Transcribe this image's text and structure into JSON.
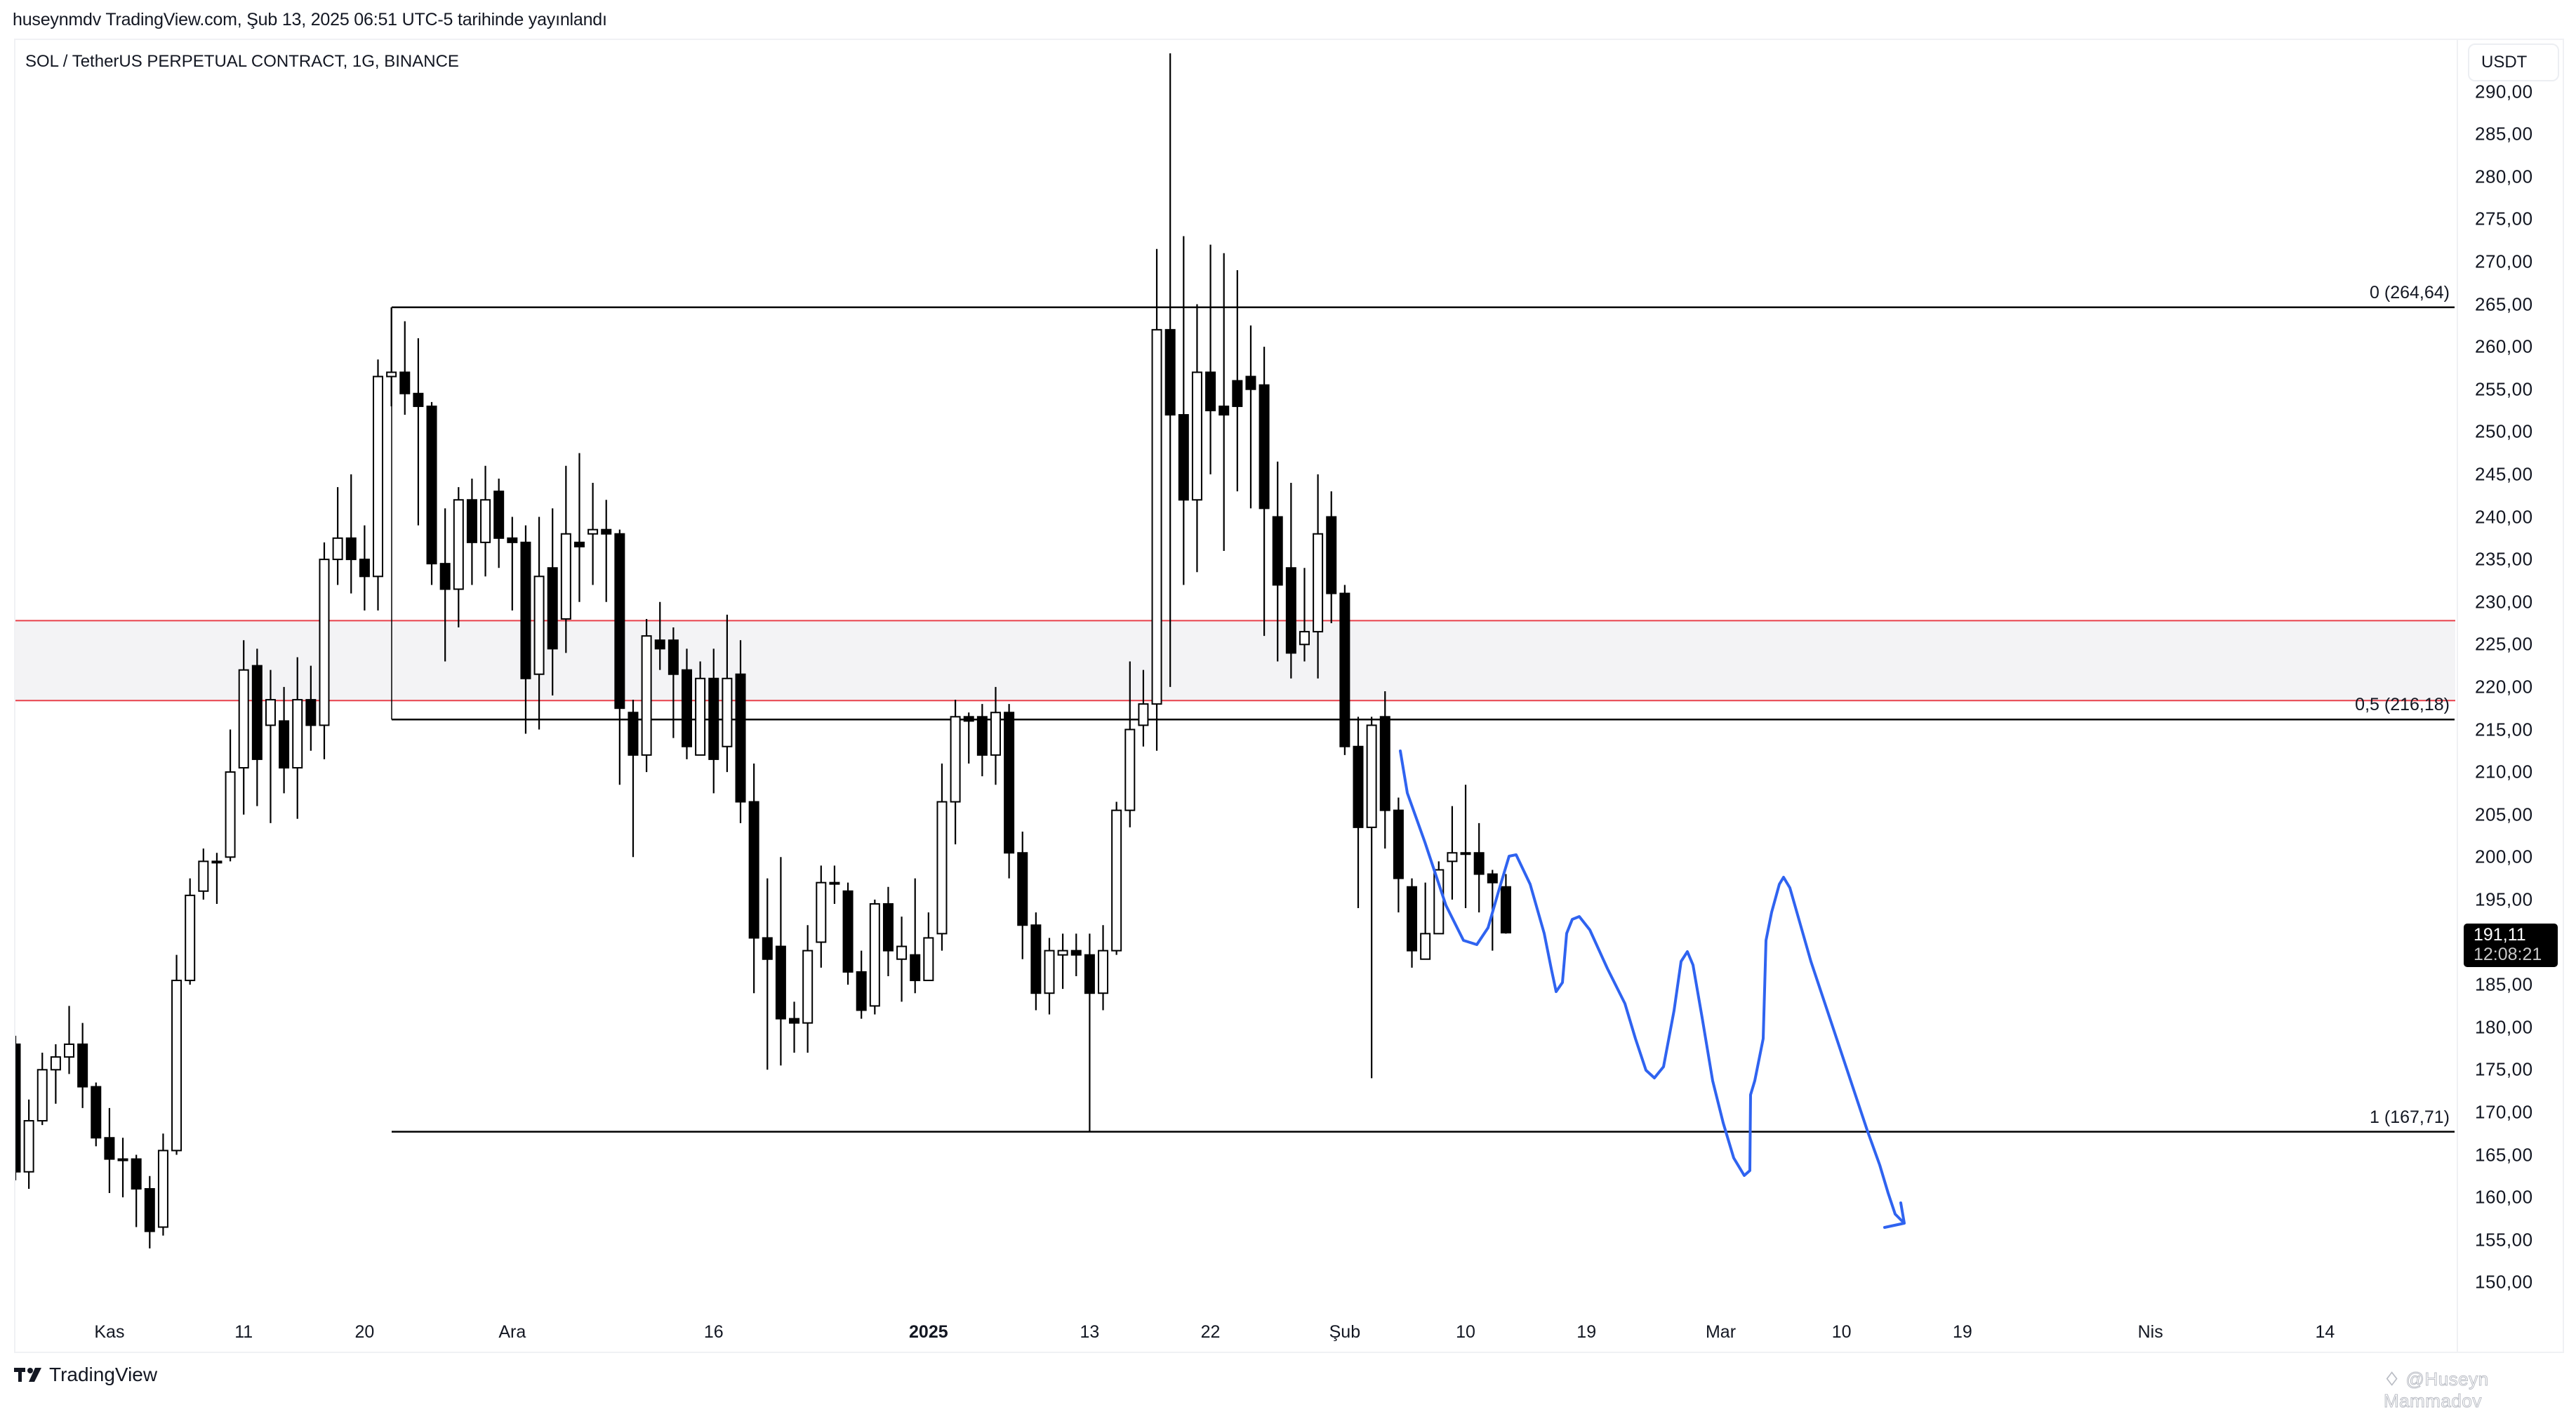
{
  "header": {
    "published_text": "huseynmdv TradingView.com, Şub 13, 2025 06:51 UTC-5 tarihinde yayınlandı"
  },
  "chart": {
    "symbol_title": "SOL / TetherUS PERPETUAL CONTRACT, 1G, BINANCE",
    "currency_unit": "USDT",
    "last_price": "191,11",
    "countdown": "12:08:21",
    "fib": {
      "level_0_label": "0 (264,64)",
      "level_05_label": "0,5 (216,18)",
      "level_1_label": "1 (167,71)"
    },
    "y_axis_labels": [
      "290,00",
      "285,00",
      "280,00",
      "275,00",
      "270,00",
      "265,00",
      "260,00",
      "255,00",
      "250,00",
      "245,00",
      "240,00",
      "235,00",
      "230,00",
      "225,00",
      "220,00",
      "215,00",
      "210,00",
      "205,00",
      "200,00",
      "195,00",
      "185,00",
      "180,00",
      "175,00",
      "170,00",
      "165,00",
      "160,00",
      "155,00",
      "150,00"
    ],
    "x_axis_labels": [
      "Kas",
      "11",
      "20",
      "Ara",
      "16",
      "2025",
      "13",
      "22",
      "Şub",
      "10",
      "19",
      "Mar",
      "10",
      "19",
      "Nis",
      "14"
    ]
  },
  "footer": {
    "logo_text": "TradingView",
    "watermark": "@Huseyn Mammadov"
  },
  "colors": {
    "bull_body": "#ffffff",
    "bear_body": "#000000",
    "wick": "#000000",
    "zone_line": "#e8404a",
    "zone_fill": "#f3f3f5",
    "projection": "#2f63f0",
    "fib_line": "#000000"
  },
  "chart_data": {
    "type": "candlestick",
    "title": "SOL / TetherUS PERPETUAL CONTRACT, 1G, BINANCE",
    "xlabel": "",
    "ylabel": "USDT",
    "ylim": [
      146,
      298
    ],
    "yticks": [
      150,
      155,
      160,
      165,
      170,
      175,
      180,
      185,
      190,
      195,
      200,
      205,
      210,
      215,
      220,
      225,
      230,
      235,
      240,
      245,
      250,
      255,
      260,
      265,
      270,
      275,
      280,
      285,
      290
    ],
    "x_tick_labels": [
      "Kas",
      "11",
      "20",
      "Ara",
      "16",
      "2025",
      "13",
      "22",
      "Şub",
      "10",
      "19",
      "Mar",
      "10",
      "19",
      "Nis",
      "14"
    ],
    "grid": false,
    "start_date": "2024-10-25",
    "interval": "1D",
    "ohlc": [
      [
        178,
        179,
        162,
        163
      ],
      [
        163,
        171.5,
        161,
        169
      ],
      [
        169,
        177,
        168.5,
        175
      ],
      [
        175,
        178,
        171,
        176.5
      ],
      [
        176.5,
        182.5,
        174.5,
        178
      ],
      [
        178,
        180.5,
        170.5,
        173
      ],
      [
        173,
        173.5,
        166,
        167
      ],
      [
        167,
        170.5,
        160.5,
        164.5
      ],
      [
        164.5,
        167,
        160,
        164.5
      ],
      [
        164.5,
        165,
        156.5,
        161
      ],
      [
        161,
        162.5,
        154,
        156
      ],
      [
        156.5,
        167.5,
        155.5,
        165.5
      ],
      [
        165.5,
        188.5,
        165,
        185.5
      ],
      [
        185.5,
        197.5,
        185,
        195.5
      ],
      [
        196,
        201,
        195,
        199.5
      ],
      [
        199.5,
        200.5,
        194.5,
        199.5
      ],
      [
        200,
        215,
        199.5,
        210
      ],
      [
        210.5,
        225.5,
        205,
        222
      ],
      [
        222.5,
        224.5,
        206,
        211.5
      ],
      [
        215.5,
        222,
        204,
        218.5
      ],
      [
        216,
        220,
        207.5,
        210.5
      ],
      [
        210.5,
        223.5,
        204.5,
        218.5
      ],
      [
        218.5,
        222.5,
        212.5,
        215.5
      ],
      [
        215.5,
        237,
        211.5,
        235
      ],
      [
        235,
        243.5,
        232,
        237.5
      ],
      [
        237.5,
        245,
        231,
        235
      ],
      [
        235,
        239,
        229,
        233
      ],
      [
        233,
        258.5,
        229,
        256.5
      ],
      [
        256.5,
        264.64,
        253,
        257
      ],
      [
        257,
        263,
        252,
        254.5
      ],
      [
        254.5,
        261,
        239,
        253
      ],
      [
        253,
        253.5,
        232,
        234.5
      ],
      [
        234.5,
        241,
        223,
        231.5
      ],
      [
        231.5,
        243.5,
        227,
        242
      ],
      [
        242,
        244.5,
        232,
        237
      ],
      [
        237,
        246,
        233,
        242
      ],
      [
        243,
        244.5,
        234,
        237.5
      ],
      [
        237.5,
        240,
        229,
        237
      ],
      [
        237,
        239,
        214.5,
        221
      ],
      [
        221.5,
        240,
        215,
        233
      ],
      [
        234,
        241,
        219,
        224.5
      ],
      [
        228,
        246,
        224,
        238
      ],
      [
        237,
        247.5,
        230,
        236.5
      ],
      [
        238,
        244,
        232,
        238.5
      ],
      [
        238.5,
        242,
        230,
        238
      ],
      [
        238,
        238.5,
        208.5,
        217.5
      ],
      [
        217,
        218.5,
        200,
        212
      ],
      [
        212,
        228,
        210,
        226
      ],
      [
        225.5,
        230,
        222,
        224.5
      ],
      [
        225.5,
        227,
        214,
        221.5
      ],
      [
        222,
        224.5,
        211.5,
        213
      ],
      [
        212,
        223,
        213,
        221
      ],
      [
        221,
        224.5,
        207.5,
        211.5
      ],
      [
        213,
        228.5,
        210,
        221
      ],
      [
        221.5,
        225.5,
        204,
        206.5
      ],
      [
        206.5,
        211,
        184,
        190.5
      ],
      [
        190.5,
        197.5,
        175,
        188
      ],
      [
        189.5,
        200,
        175.5,
        181
      ],
      [
        181,
        183,
        177,
        180.5
      ],
      [
        180.5,
        192,
        177,
        189
      ],
      [
        190,
        199,
        187,
        197
      ],
      [
        197,
        199,
        194.5,
        197
      ],
      [
        196,
        197,
        185,
        186.5
      ],
      [
        186.5,
        189,
        181,
        182
      ],
      [
        182.5,
        195,
        181.5,
        194.5
      ],
      [
        194.5,
        196.5,
        186,
        189
      ],
      [
        188,
        193,
        183,
        189.5
      ],
      [
        188.5,
        197.5,
        184,
        185.5
      ],
      [
        185.5,
        193.5,
        185.5,
        190.5
      ],
      [
        191,
        211,
        189,
        206.5
      ],
      [
        206.5,
        218.5,
        201.5,
        216.5
      ],
      [
        216.5,
        217,
        211,
        216
      ],
      [
        216.5,
        218,
        209.5,
        212
      ],
      [
        212,
        220,
        208.5,
        217
      ],
      [
        217,
        218,
        197.5,
        200.5
      ],
      [
        200.5,
        203,
        188,
        192
      ],
      [
        192,
        193.5,
        182,
        184
      ],
      [
        184,
        190.5,
        181.5,
        189
      ],
      [
        188.5,
        191,
        184.5,
        189
      ],
      [
        189,
        191,
        186,
        188.5
      ],
      [
        188.5,
        191,
        167.71,
        184
      ],
      [
        184,
        192,
        182,
        189
      ],
      [
        189,
        206.5,
        188.5,
        205.5
      ],
      [
        205.5,
        223,
        203.5,
        215
      ],
      [
        215.5,
        222,
        213,
        218
      ],
      [
        218,
        271.5,
        212.5,
        262
      ],
      [
        262,
        294.5,
        220,
        252
      ],
      [
        252,
        273,
        232,
        242
      ],
      [
        242,
        265,
        233.5,
        257
      ],
      [
        257,
        272,
        245,
        252.5
      ],
      [
        253,
        271,
        236,
        252
      ],
      [
        256,
        269,
        243,
        253
      ],
      [
        256.5,
        262.5,
        241,
        255
      ],
      [
        255.5,
        260,
        226,
        241
      ],
      [
        240,
        246.5,
        223,
        232
      ],
      [
        234,
        244,
        221,
        224
      ],
      [
        225,
        234,
        223,
        226.5
      ],
      [
        226.5,
        245,
        221,
        238
      ],
      [
        240,
        243,
        227.5,
        231
      ],
      [
        231,
        232,
        212,
        213
      ],
      [
        213,
        216.5,
        194,
        203.5
      ],
      [
        203.5,
        216.5,
        174,
        215.5
      ],
      [
        216.5,
        219.5,
        201,
        205.5
      ],
      [
        205.5,
        207,
        193.5,
        197.5
      ],
      [
        196.5,
        197.5,
        187,
        189
      ],
      [
        188,
        197,
        188.5,
        191
      ],
      [
        191,
        199.5,
        191.5,
        198.5
      ],
      [
        199.5,
        206,
        195,
        200.5
      ],
      [
        200.5,
        208.5,
        194,
        200.5
      ],
      [
        200.5,
        204,
        193.5,
        198
      ],
      [
        198,
        198.5,
        189,
        197
      ],
      [
        196.5,
        198,
        191,
        191.11
      ]
    ],
    "annotations": {
      "fibonacci": [
        {
          "level": 0,
          "price": 264.64,
          "label": "0 (264,64)"
        },
        {
          "level": 0.5,
          "price": 216.18,
          "label": "0,5 (216,18)"
        },
        {
          "level": 1,
          "price": 167.71,
          "label": "1 (167,71)"
        }
      ],
      "resistance_zone": {
        "top": 227.8,
        "bottom": 218.4,
        "color": "#e8404a"
      },
      "projection_path_prices": [
        212,
        199,
        191,
        190,
        200,
        185,
        195,
        172,
        190,
        166,
        180,
        198,
        160
      ],
      "last_price": 191.11,
      "countdown": "12:08:21"
    }
  }
}
